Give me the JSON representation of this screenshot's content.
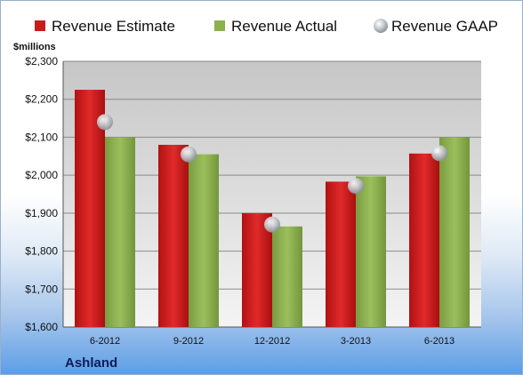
{
  "chart_data": {
    "type": "bar",
    "ylabel": "$millions",
    "ylim": [
      1600,
      2300
    ],
    "yticks": [
      "$1,600",
      "$1,700",
      "$1,800",
      "$1,900",
      "$2,000",
      "$2,100",
      "$2,200",
      "$2,300"
    ],
    "ytick_values": [
      1600,
      1700,
      1800,
      1900,
      2000,
      2100,
      2200,
      2300
    ],
    "categories": [
      "6-2012",
      "9-2012",
      "12-2012",
      "3-2013",
      "6-2013"
    ],
    "series": [
      {
        "name": "Revenue Estimate",
        "kind": "bar",
        "color": "#cc1a1a",
        "values": [
          2225,
          2080,
          1900,
          1983,
          2057
        ]
      },
      {
        "name": "Revenue Actual",
        "kind": "bar",
        "color": "#8db04f",
        "values": [
          2100,
          2055,
          1865,
          1997,
          2100
        ]
      },
      {
        "name": "Revenue GAAP",
        "kind": "marker",
        "color": "#c9cdd3",
        "values": [
          2140,
          2055,
          1870,
          1972,
          2058
        ]
      }
    ],
    "legend_position": "top",
    "grid": true,
    "company": "Ashland"
  }
}
